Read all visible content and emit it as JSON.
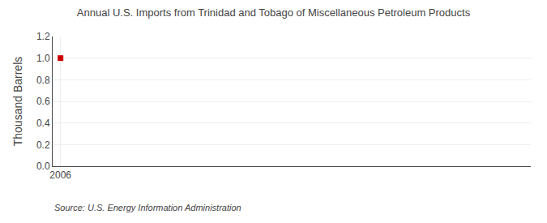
{
  "chart_data": {
    "type": "scatter",
    "title": "Annual U.S. Imports from Trinidad and Tobago of Miscellaneous Petroleum Products",
    "ylabel": "Thousand Barrels",
    "annotations": [
      "Source: U.S. Energy Information Administration"
    ],
    "x": [
      2006
    ],
    "values": [
      1.0
    ],
    "color": "#cc0000",
    "marker": "square",
    "xlim": [
      2005.6,
      2030
    ],
    "xticks": [
      2006
    ],
    "ylim": [
      0.0,
      1.2
    ],
    "yticks": [
      {
        "value": 0.0,
        "label": "0.0"
      },
      0.2,
      0.4,
      0.6,
      0.8,
      {
        "value": 1.0,
        "label": "1.0"
      },
      1.2
    ],
    "grid": true
  }
}
